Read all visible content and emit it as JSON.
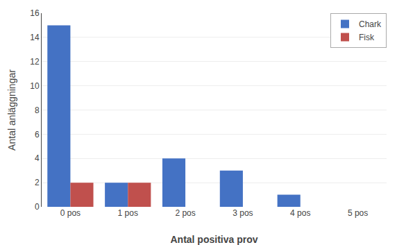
{
  "chart_data": {
    "type": "bar",
    "categories": [
      "0 pos",
      "1 pos",
      "2 pos",
      "3 pos",
      "4 pos",
      "5 pos"
    ],
    "series": [
      {
        "name": "Chark",
        "color": "#4472C4",
        "values": [
          15,
          2,
          4,
          3,
          1,
          0
        ]
      },
      {
        "name": "Fisk",
        "color": "#C0504D",
        "values": [
          2,
          2,
          0,
          0,
          0,
          0
        ]
      }
    ],
    "xlabel": "Antal positiva prov",
    "ylabel": "Antal anläggningar",
    "ylim": [
      0,
      16
    ],
    "yticks": [
      0,
      2,
      4,
      6,
      8,
      10,
      12,
      14,
      16
    ],
    "grid": true,
    "legend": "upper right"
  }
}
